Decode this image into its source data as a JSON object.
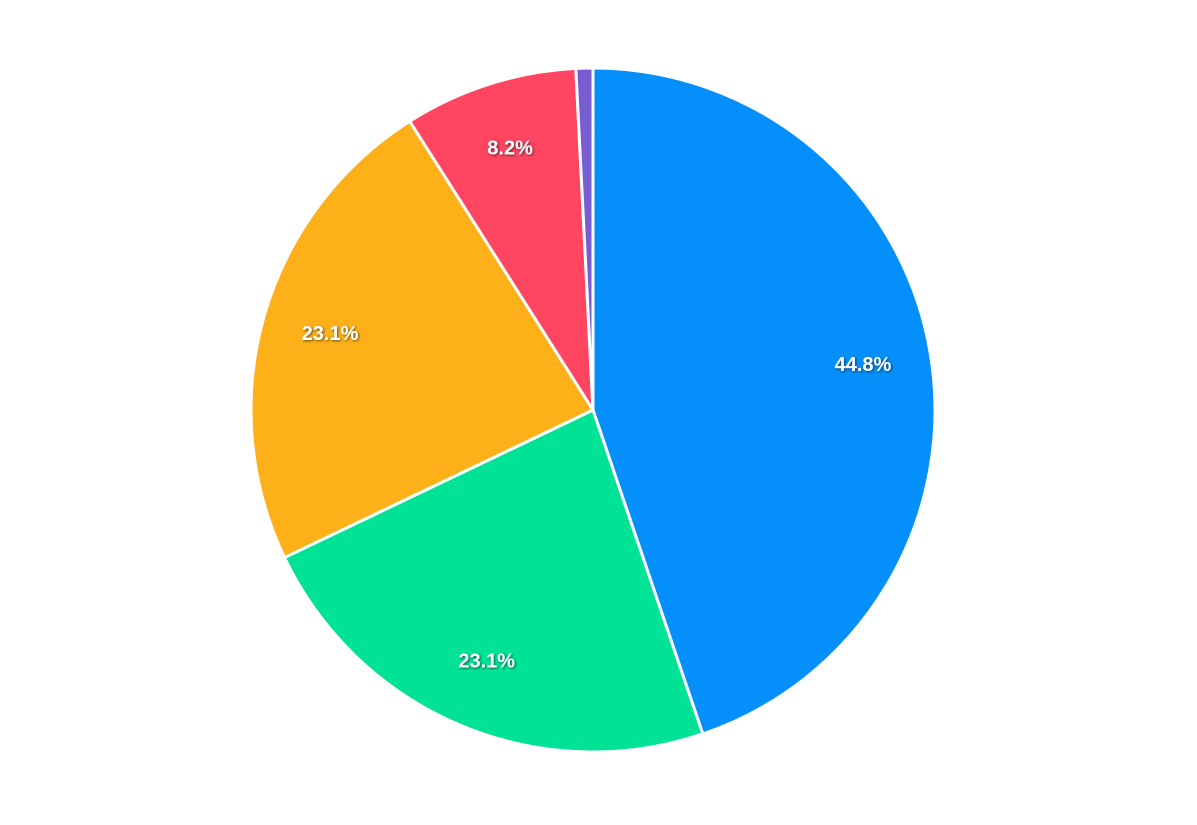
{
  "chart_data": {
    "type": "pie",
    "values": [
      44.8,
      23.1,
      23.1,
      8.2,
      0.8
    ],
    "value_labels": [
      "44.8%",
      "23.1%",
      "23.1%",
      "8.2%",
      null
    ],
    "colors": [
      "#058ffb",
      "#00e396",
      "#feb019",
      "#ff4560",
      "#775dd0"
    ]
  }
}
